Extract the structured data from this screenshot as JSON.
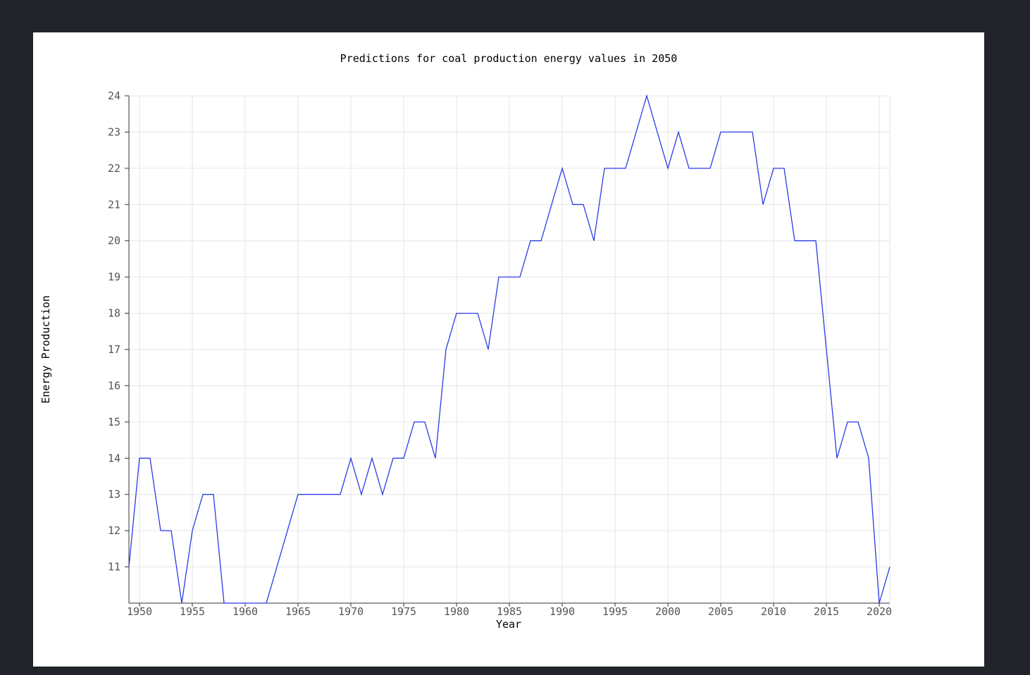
{
  "chart_data": {
    "type": "line",
    "title": "Predictions for coal production energy values in 2050",
    "xlabel": "Year",
    "ylabel": "Energy Production",
    "xlim": [
      1949,
      2021
    ],
    "ylim": [
      10,
      24
    ],
    "x_ticks": [
      1950,
      1955,
      1960,
      1965,
      1970,
      1975,
      1980,
      1985,
      1990,
      1995,
      2000,
      2005,
      2010,
      2015,
      2020
    ],
    "y_ticks": [
      11,
      12,
      13,
      14,
      15,
      16,
      17,
      18,
      19,
      20,
      21,
      22,
      23,
      24
    ],
    "grid": true,
    "line_color": "#2b3be6",
    "series": [
      {
        "x": [
          1949,
          1950,
          1951,
          1952,
          1953,
          1954,
          1955,
          1956,
          1957,
          1958,
          1959,
          1960,
          1961,
          1962,
          1963,
          1964,
          1965,
          1966,
          1967,
          1968,
          1969,
          1970,
          1971,
          1972,
          1973,
          1974,
          1975,
          1976,
          1977,
          1978,
          1979,
          1980,
          1981,
          1982,
          1983,
          1984,
          1985,
          1986,
          1987,
          1988,
          1989,
          1990,
          1991,
          1992,
          1993,
          1994,
          1995,
          1996,
          1997,
          1998,
          1999,
          2000,
          2001,
          2002,
          2003,
          2004,
          2005,
          2006,
          2007,
          2008,
          2009,
          2010,
          2011,
          2012,
          2013,
          2014,
          2015,
          2016,
          2017,
          2018,
          2019,
          2020,
          2021
        ],
        "values": [
          11,
          14,
          14,
          12,
          12,
          10,
          12,
          13,
          13,
          10,
          10,
          10,
          10,
          10,
          11,
          12,
          13,
          13,
          13,
          13,
          13,
          14,
          13,
          14,
          13,
          14,
          14,
          15,
          15,
          14,
          17,
          18,
          18,
          18,
          17,
          19,
          19,
          19,
          20,
          20,
          21,
          22,
          21,
          21,
          20,
          22,
          22,
          22,
          23,
          24,
          23,
          22,
          23,
          22,
          22,
          22,
          23,
          23,
          23,
          23,
          21,
          22,
          22,
          20,
          20,
          20,
          17,
          14,
          15,
          15,
          14,
          10,
          11
        ]
      }
    ]
  }
}
